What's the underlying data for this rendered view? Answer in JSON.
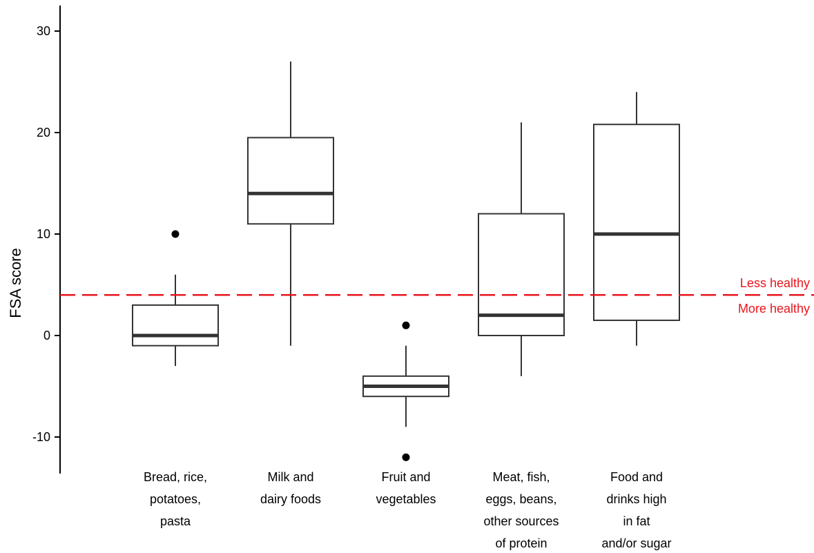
{
  "chart_data": {
    "type": "box",
    "title": "",
    "xlabel": "",
    "ylabel": "FSA score",
    "ylim": [
      -13.5,
      32.5
    ],
    "yticks": [
      -10,
      0,
      10,
      20,
      30
    ],
    "grid": false,
    "categories": [
      {
        "label_lines": [
          "Bread, rice,",
          "potatoes,",
          "pasta"
        ],
        "whisker_low": -3,
        "q1": -1,
        "median": 0,
        "q3": 3,
        "whisker_high": 6,
        "outliers": [
          10
        ]
      },
      {
        "label_lines": [
          "Milk and",
          "dairy foods"
        ],
        "whisker_low": -1,
        "q1": 11,
        "median": 14,
        "q3": 19.5,
        "whisker_high": 27,
        "outliers": []
      },
      {
        "label_lines": [
          "Fruit and",
          "vegetables"
        ],
        "whisker_low": -9,
        "q1": -6,
        "median": -5,
        "q3": -4,
        "whisker_high": -1,
        "outliers": [
          1,
          -12
        ]
      },
      {
        "label_lines": [
          "Meat, fish,",
          "eggs, beans,",
          "other sources",
          "of protein"
        ],
        "whisker_low": -4,
        "q1": 0,
        "median": 2,
        "q3": 12,
        "whisker_high": 21,
        "outliers": []
      },
      {
        "label_lines": [
          "Food and",
          "drinks high",
          "in fat",
          "and/or sugar"
        ],
        "whisker_low": -1,
        "q1": 1.5,
        "median": 10,
        "q3": 20.8,
        "whisker_high": 24,
        "outliers": []
      }
    ],
    "reference_line": {
      "y": 4,
      "style": "dashed",
      "color": "#e8141c",
      "label_above": "Less healthy",
      "label_below": "More healthy"
    },
    "box_color": "#333333",
    "outlier_color": "#000000"
  }
}
